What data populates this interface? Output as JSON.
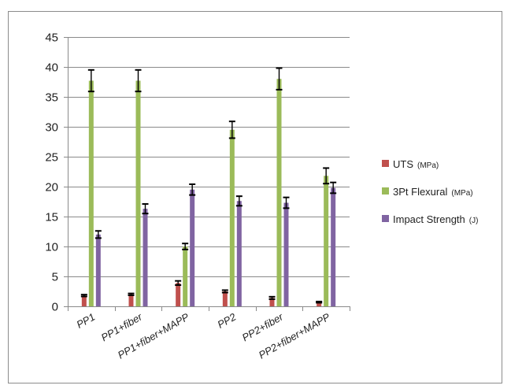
{
  "chart_data": {
    "type": "bar",
    "title": "",
    "xlabel": "",
    "ylabel": "",
    "ylim": [
      0,
      45
    ],
    "yticks": [
      "0",
      "5",
      "10",
      "15",
      "20",
      "25",
      "30",
      "35",
      "40",
      "45"
    ],
    "grid": true,
    "legend_position": "right",
    "categories": [
      "PP1",
      "PP1+fiber",
      "PP1+fiber+MAPP",
      "PP2",
      "PP2+fiber",
      "PP2+fiber+MAPP"
    ],
    "series": [
      {
        "name": "UTS",
        "unit": "(MPa)",
        "color": "#c0504d",
        "values": [
          1.8,
          2.0,
          3.9,
          2.5,
          1.4,
          0.7
        ],
        "errors": [
          0.15,
          0.15,
          0.35,
          0.2,
          0.2,
          0.1
        ]
      },
      {
        "name": "3Pt Flexural",
        "unit": "(MPa)",
        "color": "#9bbb59",
        "values": [
          37.7,
          37.7,
          10.0,
          29.5,
          38.0,
          21.8
        ],
        "errors": [
          1.8,
          1.8,
          0.5,
          1.4,
          1.8,
          1.3
        ]
      },
      {
        "name": "Impact Strength",
        "unit": "(J)",
        "color": "#8064a2",
        "values": [
          12.0,
          16.3,
          19.5,
          17.6,
          17.3,
          19.8
        ],
        "errors": [
          0.6,
          0.8,
          0.9,
          0.8,
          0.9,
          0.9
        ]
      }
    ]
  }
}
